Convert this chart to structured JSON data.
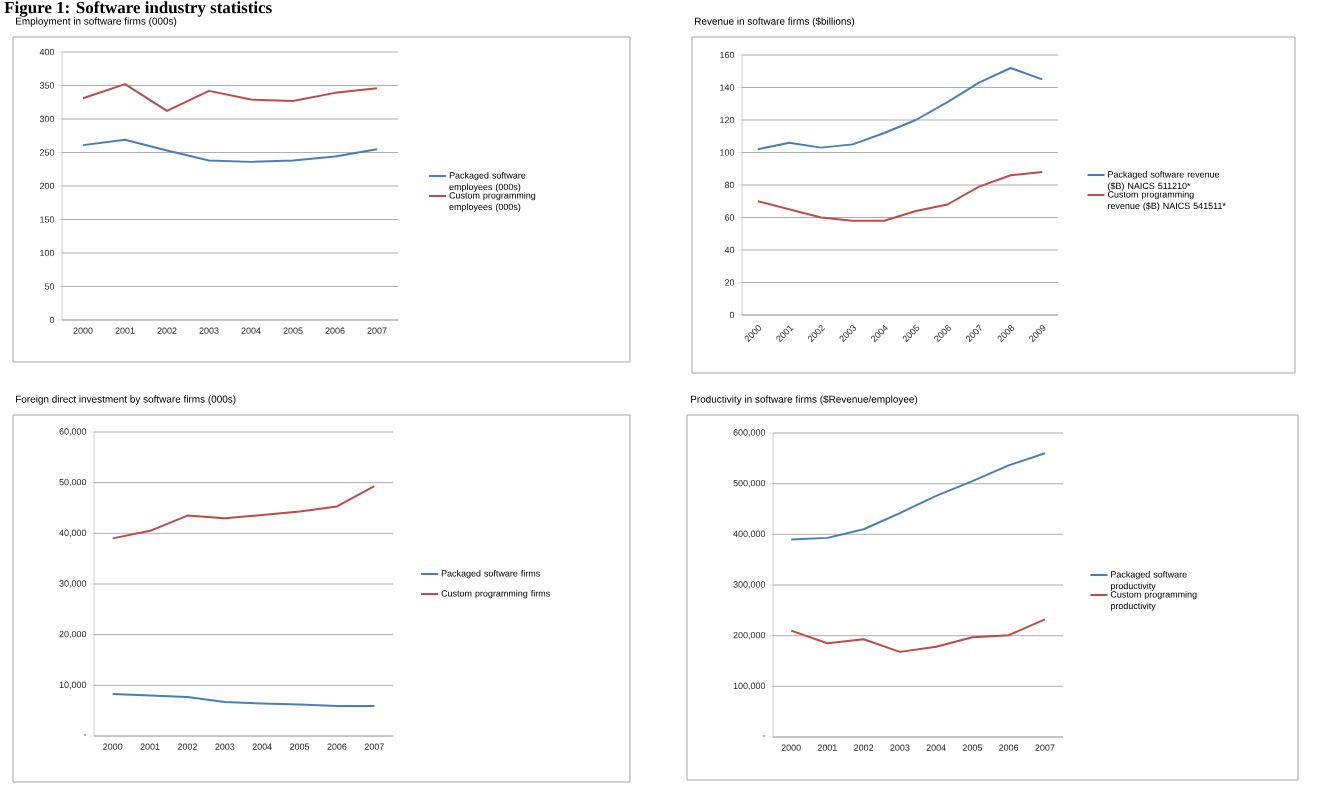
{
  "chart_data": [
    {
      "type": "other",
      "title": "Figure 1: Software industry statistics"
    },
    {
      "type": "line",
      "title": "Employment in software firms (000s)",
      "categories": [
        "2000",
        "2001",
        "2002",
        "2003",
        "2004",
        "2005",
        "2006",
        "2007"
      ],
      "series": [
        {
          "name": "Packaged software employees (000s)",
          "color": "#4a7ebb",
          "values": [
            261,
            269,
            253,
            238,
            236,
            238,
            244,
            255
          ]
        },
        {
          "name": "Custom programming employees (000s)",
          "color": "#be4b48",
          "values": [
            331,
            352,
            312,
            342,
            329,
            327,
            339,
            346
          ]
        }
      ],
      "ylim": [
        0,
        400
      ],
      "yticks": [
        0,
        50,
        100,
        150,
        200,
        250,
        300,
        350,
        400
      ],
      "grid": "y",
      "legend": "right"
    },
    {
      "type": "line",
      "title": "Revenue in software firms ($billions)",
      "categories": [
        "2000",
        "2001",
        "2002",
        "2003",
        "2004",
        "2005",
        "2006",
        "2007",
        "2008",
        "2009"
      ],
      "series": [
        {
          "name": "Packaged software revenue ($B) NAICS 511210*",
          "color": "#4a7ebb",
          "values": [
            102,
            106,
            103,
            105,
            112,
            120,
            131,
            143,
            152,
            145
          ]
        },
        {
          "name": "Custom programming revenue ($B) NAICS 541511*",
          "color": "#be4b48",
          "values": [
            70,
            65,
            60,
            58,
            58,
            64,
            68,
            79,
            86,
            88
          ]
        }
      ],
      "ylim": [
        0,
        160
      ],
      "yticks": [
        0,
        20,
        40,
        60,
        80,
        100,
        120,
        140,
        160
      ],
      "grid": "y",
      "legend": "right"
    },
    {
      "type": "line",
      "title": "Foreign direct investment by software firms (000s)",
      "categories": [
        "2000",
        "2001",
        "2002",
        "2003",
        "2004",
        "2005",
        "2006",
        "2007"
      ],
      "series": [
        {
          "name": "Packaged software firms",
          "color": "#4a7ebb",
          "values": [
            8300,
            8000,
            7700,
            6700,
            6400,
            6200,
            5900,
            5900
          ]
        },
        {
          "name": "Custom programming firms",
          "color": "#be4b48",
          "values": [
            39000,
            40500,
            43500,
            43000,
            43600,
            44300,
            45300,
            49300
          ]
        }
      ],
      "ylim": [
        0,
        60000
      ],
      "yticks": [
        {
          "value": 0,
          "label": "-"
        },
        {
          "value": 10000,
          "label": "10,000"
        },
        {
          "value": 20000,
          "label": "20,000"
        },
        {
          "value": 30000,
          "label": "30,000"
        },
        {
          "value": 40000,
          "label": "40,000"
        },
        {
          "value": 50000,
          "label": "50,000"
        },
        {
          "value": 60000,
          "label": "60,000"
        }
      ],
      "grid": "y",
      "legend": "right"
    },
    {
      "type": "line",
      "title": "Productivity in software firms ($Revenue/employee)",
      "categories": [
        "2000",
        "2001",
        "2002",
        "2003",
        "2004",
        "2005",
        "2006",
        "2007"
      ],
      "series": [
        {
          "name": "Packaged software productivity",
          "color": "#4a7ebb",
          "values": [
            390000,
            393000,
            410000,
            442000,
            476000,
            505000,
            536000,
            560000
          ]
        },
        {
          "name": "Custom programming productivity",
          "color": "#be4b48",
          "values": [
            210000,
            185000,
            193000,
            168000,
            178000,
            197000,
            201000,
            232000
          ]
        }
      ],
      "ylim": [
        0,
        600000
      ],
      "yticks": [
        {
          "value": 0,
          "label": "-"
        },
        {
          "value": 100000,
          "label": "100,000"
        },
        {
          "value": 200000,
          "label": "200,000"
        },
        {
          "value": 300000,
          "label": "300,000"
        },
        {
          "value": 400000,
          "label": "400,000"
        },
        {
          "value": 500000,
          "label": "500,000"
        },
        {
          "value": 600000,
          "label": "600,000"
        }
      ],
      "grid": "y",
      "legend": "right"
    }
  ]
}
